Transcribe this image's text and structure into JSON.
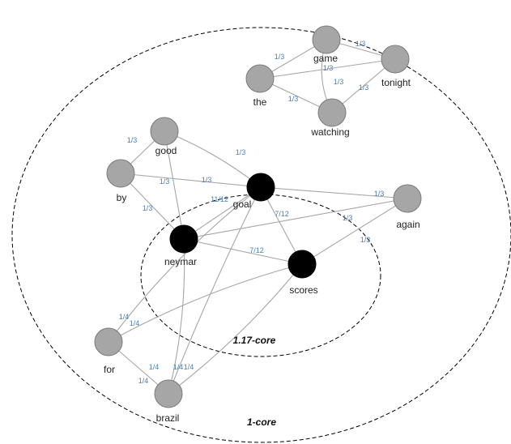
{
  "colors": {
    "gray_node": "#a6a6a6",
    "black_node": "#000000",
    "edge": "#a6a6a6",
    "edge_label": "#4a7fb5"
  },
  "cores": [
    {
      "id": "outer",
      "label": "1-core"
    },
    {
      "id": "inner",
      "label": "1.17-core"
    }
  ],
  "nodes": [
    {
      "id": "game",
      "label": "game",
      "fill": "gray"
    },
    {
      "id": "tonight",
      "label": "tonight",
      "fill": "gray"
    },
    {
      "id": "the",
      "label": "the",
      "fill": "gray"
    },
    {
      "id": "watching",
      "label": "watching",
      "fill": "gray"
    },
    {
      "id": "good",
      "label": "good",
      "fill": "gray"
    },
    {
      "id": "by",
      "label": "by",
      "fill": "gray"
    },
    {
      "id": "goal",
      "label": "goal",
      "fill": "black"
    },
    {
      "id": "again",
      "label": "again",
      "fill": "gray"
    },
    {
      "id": "neymar",
      "label": "neymar",
      "fill": "black"
    },
    {
      "id": "scores",
      "label": "scores",
      "fill": "black"
    },
    {
      "id": "for",
      "label": "for",
      "fill": "gray"
    },
    {
      "id": "brazil",
      "label": "brazil",
      "fill": "gray"
    }
  ],
  "edges": [
    {
      "from": "game",
      "to": "tonight",
      "weight": "1/3"
    },
    {
      "from": "game",
      "to": "the",
      "weight": "1/3"
    },
    {
      "from": "game",
      "to": "watching",
      "weight": "1/3"
    },
    {
      "from": "the",
      "to": "tonight",
      "weight": "1/3"
    },
    {
      "from": "the",
      "to": "watching",
      "weight": "1/3"
    },
    {
      "from": "watching",
      "to": "tonight",
      "weight": "1/3"
    },
    {
      "from": "good",
      "to": "by",
      "weight": "1/3"
    },
    {
      "from": "good",
      "to": "goal",
      "weight": "1/3"
    },
    {
      "from": "good",
      "to": "neymar",
      "weight": "1/3"
    },
    {
      "from": "by",
      "to": "goal",
      "weight": "1/3"
    },
    {
      "from": "by",
      "to": "neymar",
      "weight": "1/3"
    },
    {
      "from": "goal",
      "to": "again",
      "weight": "1/3"
    },
    {
      "from": "goal",
      "to": "neymar",
      "weight": "11/12"
    },
    {
      "from": "goal",
      "to": "scores",
      "weight": "7/12"
    },
    {
      "from": "neymar",
      "to": "again",
      "weight": "1/3"
    },
    {
      "from": "neymar",
      "to": "scores",
      "weight": "7/12"
    },
    {
      "from": "scores",
      "to": "again",
      "weight": "1/3"
    },
    {
      "from": "for",
      "to": "goal",
      "weight": "1/4"
    },
    {
      "from": "for",
      "to": "scores",
      "weight": "1/4"
    },
    {
      "from": "for",
      "to": "brazil",
      "weight": "1/4"
    },
    {
      "from": "brazil",
      "to": "neymar",
      "weight": "1/4"
    },
    {
      "from": "brazil",
      "to": "goal",
      "weight": "1/4"
    },
    {
      "from": "brazil",
      "to": "scores",
      "weight": "1/4"
    }
  ]
}
